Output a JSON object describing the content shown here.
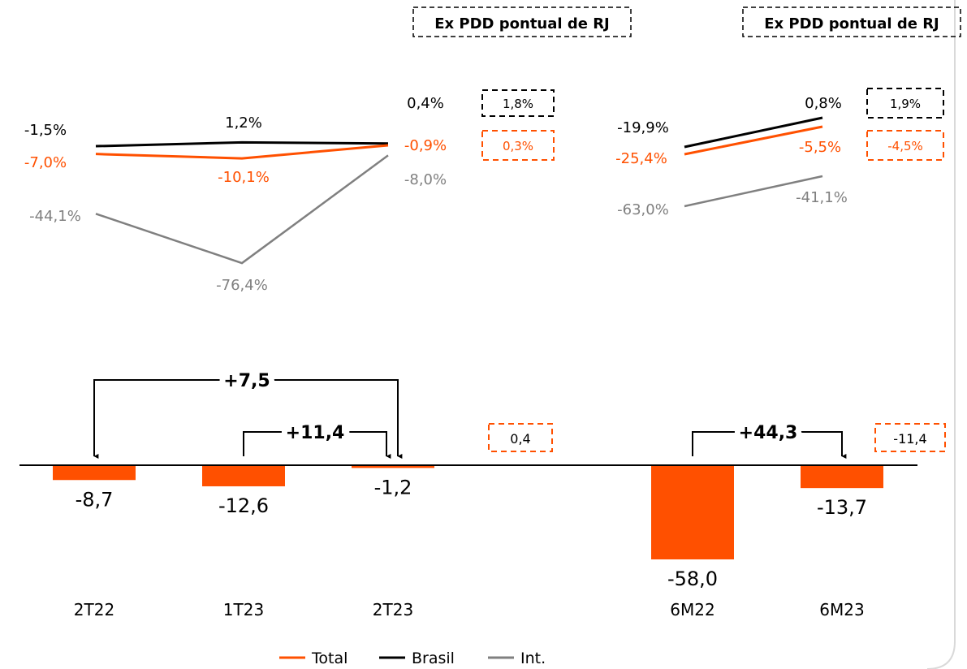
{
  "colors": {
    "total": "#FF5000",
    "brasil": "#000000",
    "int": "#808080",
    "axis": "#000000",
    "frame": "#D9D9D9"
  },
  "headers": {
    "left": "Ex PDD pontual de RJ",
    "right": "Ex PDD pontual de RJ"
  },
  "chart_data": [
    {
      "type": "line",
      "unit": "%",
      "categories": [
        "2T22",
        "1T23",
        "2T23"
      ],
      "series": [
        {
          "name": "Brasil",
          "values": [
            -1.5,
            1.2,
            0.4
          ],
          "labels": [
            "-1,5%",
            "1,2%",
            "0,4%"
          ]
        },
        {
          "name": "Total",
          "values": [
            -7.0,
            -10.1,
            -0.9
          ],
          "labels": [
            "-7,0%",
            "-10,1%",
            "-0,9%"
          ]
        },
        {
          "name": "Int.",
          "values": [
            -44.1,
            -76.4,
            -8.0
          ],
          "labels": [
            "-44,1%",
            "-76,4%",
            "-8,0%"
          ]
        }
      ],
      "ex_pdd": {
        "brasil": "1,8%",
        "total": "0,3%"
      }
    },
    {
      "type": "line",
      "unit": "%",
      "categories": [
        "6M22",
        "6M23"
      ],
      "series": [
        {
          "name": "Brasil",
          "values": [
            -19.9,
            0.8
          ],
          "labels": [
            "-19,9%",
            "0,8%"
          ]
        },
        {
          "name": "Total",
          "values": [
            -25.4,
            -5.5
          ],
          "labels": [
            "-25,4%",
            "-5,5%"
          ]
        },
        {
          "name": "Int.",
          "values": [
            -63.0,
            -41.1
          ],
          "labels": [
            "-63,0%",
            "-41,1%"
          ]
        }
      ],
      "ex_pdd": {
        "brasil": "1,9%",
        "total": "-4,5%"
      }
    },
    {
      "type": "bar",
      "categories": [
        "2T22",
        "1T23",
        "2T23",
        "6M22",
        "6M23"
      ],
      "values": [
        -8.7,
        -12.6,
        -1.2,
        -58.0,
        -13.7
      ],
      "labels": [
        "-8,7",
        "-12,6",
        "-1,2",
        "-58,0",
        "-13,7"
      ],
      "ex_pdd": [
        {
          "after": "2T23",
          "label": "0,4"
        },
        {
          "after": "6M23",
          "label": "-11,4"
        }
      ],
      "variations": [
        {
          "from": "2T22",
          "to": "2T23",
          "label": "+7,5"
        },
        {
          "from": "1T23",
          "to": "2T23",
          "label": "+11,4"
        },
        {
          "from": "6M22",
          "to": "6M23",
          "label": "+44,3"
        }
      ]
    }
  ],
  "legend": [
    {
      "name": "Total",
      "key": "total"
    },
    {
      "name": "Brasil",
      "key": "brasil"
    },
    {
      "name": "Int.",
      "key": "int"
    }
  ]
}
